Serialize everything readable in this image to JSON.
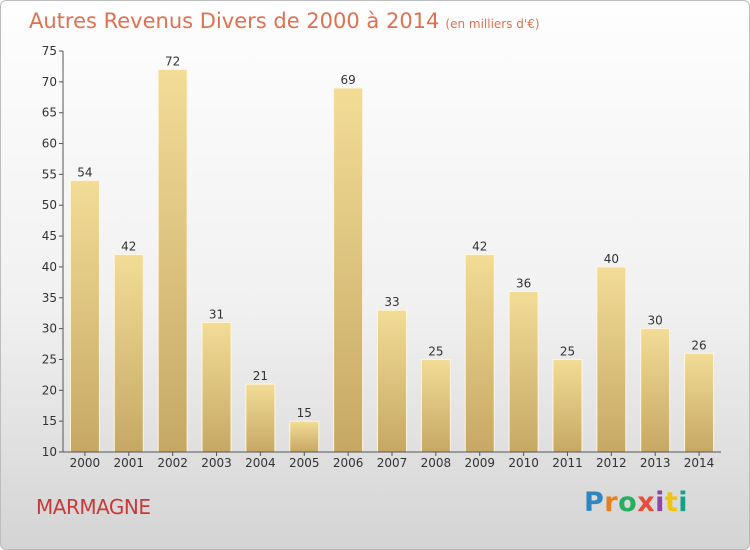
{
  "title": "Autres Revenus Divers de 2000 à 2014",
  "subtitle": "(en milliers d'€)",
  "place": "MARMAGNE",
  "logo": {
    "letters": [
      "P",
      "r",
      "o",
      "x",
      "i",
      "t",
      "i"
    ],
    "colors": [
      "#2e86c1",
      "#e67e22",
      "#27ae60",
      "#e74c3c",
      "#8e44ad",
      "#f1c40f",
      "#16a085"
    ]
  },
  "colors": {
    "bar_light": "#f2dc96",
    "bar_dark": "#c6a864",
    "bar_edge": "#fff6dc",
    "axis": "#555555",
    "title": "#e07050",
    "place": "#c83a3a"
  },
  "chart_data": {
    "type": "bar",
    "title": "Autres Revenus Divers de 2000 à 2014",
    "subtitle": "(en milliers d'€)",
    "categories": [
      "2000",
      "2001",
      "2002",
      "2003",
      "2004",
      "2005",
      "2006",
      "2007",
      "2008",
      "2009",
      "2010",
      "2011",
      "2012",
      "2013",
      "2014"
    ],
    "values": [
      54,
      42,
      72,
      31,
      21,
      15,
      69,
      33,
      25,
      42,
      36,
      25,
      40,
      30,
      26
    ],
    "ylim": [
      10,
      75
    ],
    "yticks": [
      10,
      15,
      20,
      25,
      30,
      35,
      40,
      45,
      50,
      55,
      60,
      65,
      70,
      75
    ],
    "data_labels": true,
    "grid": false,
    "legend": "none"
  }
}
